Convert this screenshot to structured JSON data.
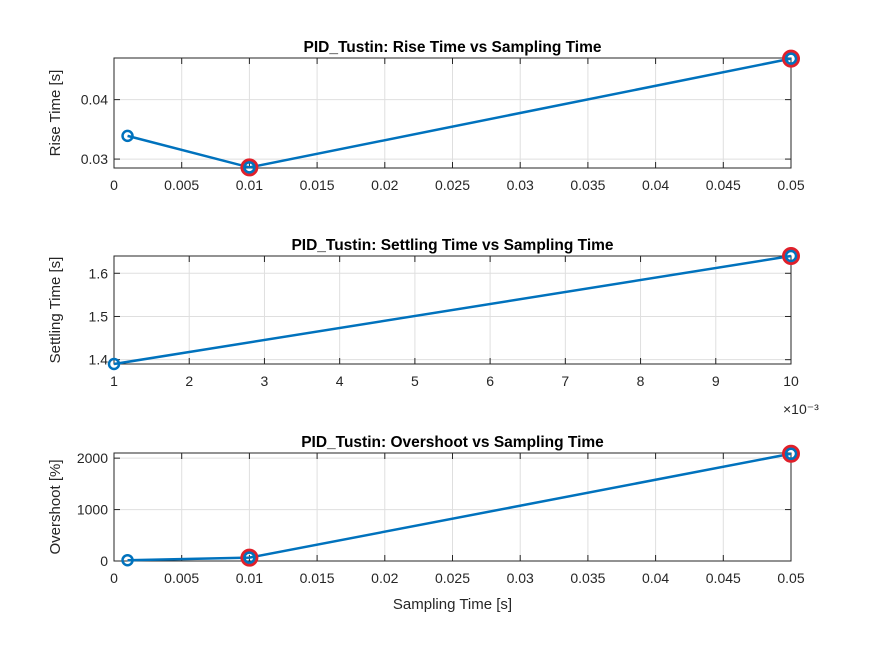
{
  "chart_data": [
    {
      "type": "line",
      "title": "PID_Tustin: Rise Time vs Sampling Time",
      "xlabel": "",
      "ylabel": "Rise Time [s]",
      "x": [
        0.001,
        0.01,
        0.05
      ],
      "series": [
        {
          "values": [
            0.0339,
            0.0286,
            0.0469
          ]
        }
      ],
      "highlighted_x": [
        0.01,
        0.05
      ],
      "xlim": [
        0,
        0.05
      ],
      "ylim": [
        0.0285,
        0.047
      ],
      "xticks": [
        0,
        0.005,
        0.01,
        0.015,
        0.02,
        0.025,
        0.03,
        0.035,
        0.04,
        0.045,
        0.05
      ],
      "xtick_labels": [
        "0",
        "0.005",
        "0.01",
        "0.015",
        "0.02",
        "0.025",
        "0.03",
        "0.035",
        "0.04",
        "0.045",
        "0.05"
      ],
      "yticks": [
        0.03,
        0.04
      ],
      "ytick_labels": [
        "0.03",
        "0.04"
      ],
      "x_exponent_label": "",
      "grid": true
    },
    {
      "type": "line",
      "title": "PID_Tustin: Settling Time vs Sampling Time",
      "xlabel": "",
      "ylabel": "Settling Time [s]",
      "x": [
        1,
        10
      ],
      "series": [
        {
          "values": [
            1.39,
            1.64
          ]
        }
      ],
      "highlighted_x": [
        10
      ],
      "xlim": [
        1,
        10
      ],
      "ylim": [
        1.39,
        1.64
      ],
      "xticks": [
        1,
        2,
        3,
        4,
        5,
        6,
        7,
        8,
        9,
        10
      ],
      "xtick_labels": [
        "1",
        "2",
        "3",
        "4",
        "5",
        "6",
        "7",
        "8",
        "9",
        "10"
      ],
      "yticks": [
        1.4,
        1.5,
        1.6
      ],
      "ytick_labels": [
        "1.4",
        "1.5",
        "1.6"
      ],
      "x_exponent_label": "×10⁻³",
      "grid": true
    },
    {
      "type": "line",
      "title": "PID_Tustin: Overshoot vs Sampling Time",
      "xlabel": "Sampling Time [s]",
      "ylabel": "Overshoot [%]",
      "x": [
        0.001,
        0.01,
        0.05
      ],
      "series": [
        {
          "values": [
            15,
            65,
            2085
          ]
        }
      ],
      "highlighted_x": [
        0.01,
        0.05
      ],
      "xlim": [
        0,
        0.05
      ],
      "ylim": [
        0,
        2100
      ],
      "xticks": [
        0,
        0.005,
        0.01,
        0.015,
        0.02,
        0.025,
        0.03,
        0.035,
        0.04,
        0.045,
        0.05
      ],
      "xtick_labels": [
        "0",
        "0.005",
        "0.01",
        "0.015",
        "0.02",
        "0.025",
        "0.03",
        "0.035",
        "0.04",
        "0.045",
        "0.05"
      ],
      "yticks": [
        0,
        1000,
        2000
      ],
      "ytick_labels": [
        "0",
        "1000",
        "2000"
      ],
      "x_exponent_label": "",
      "grid": true
    }
  ]
}
